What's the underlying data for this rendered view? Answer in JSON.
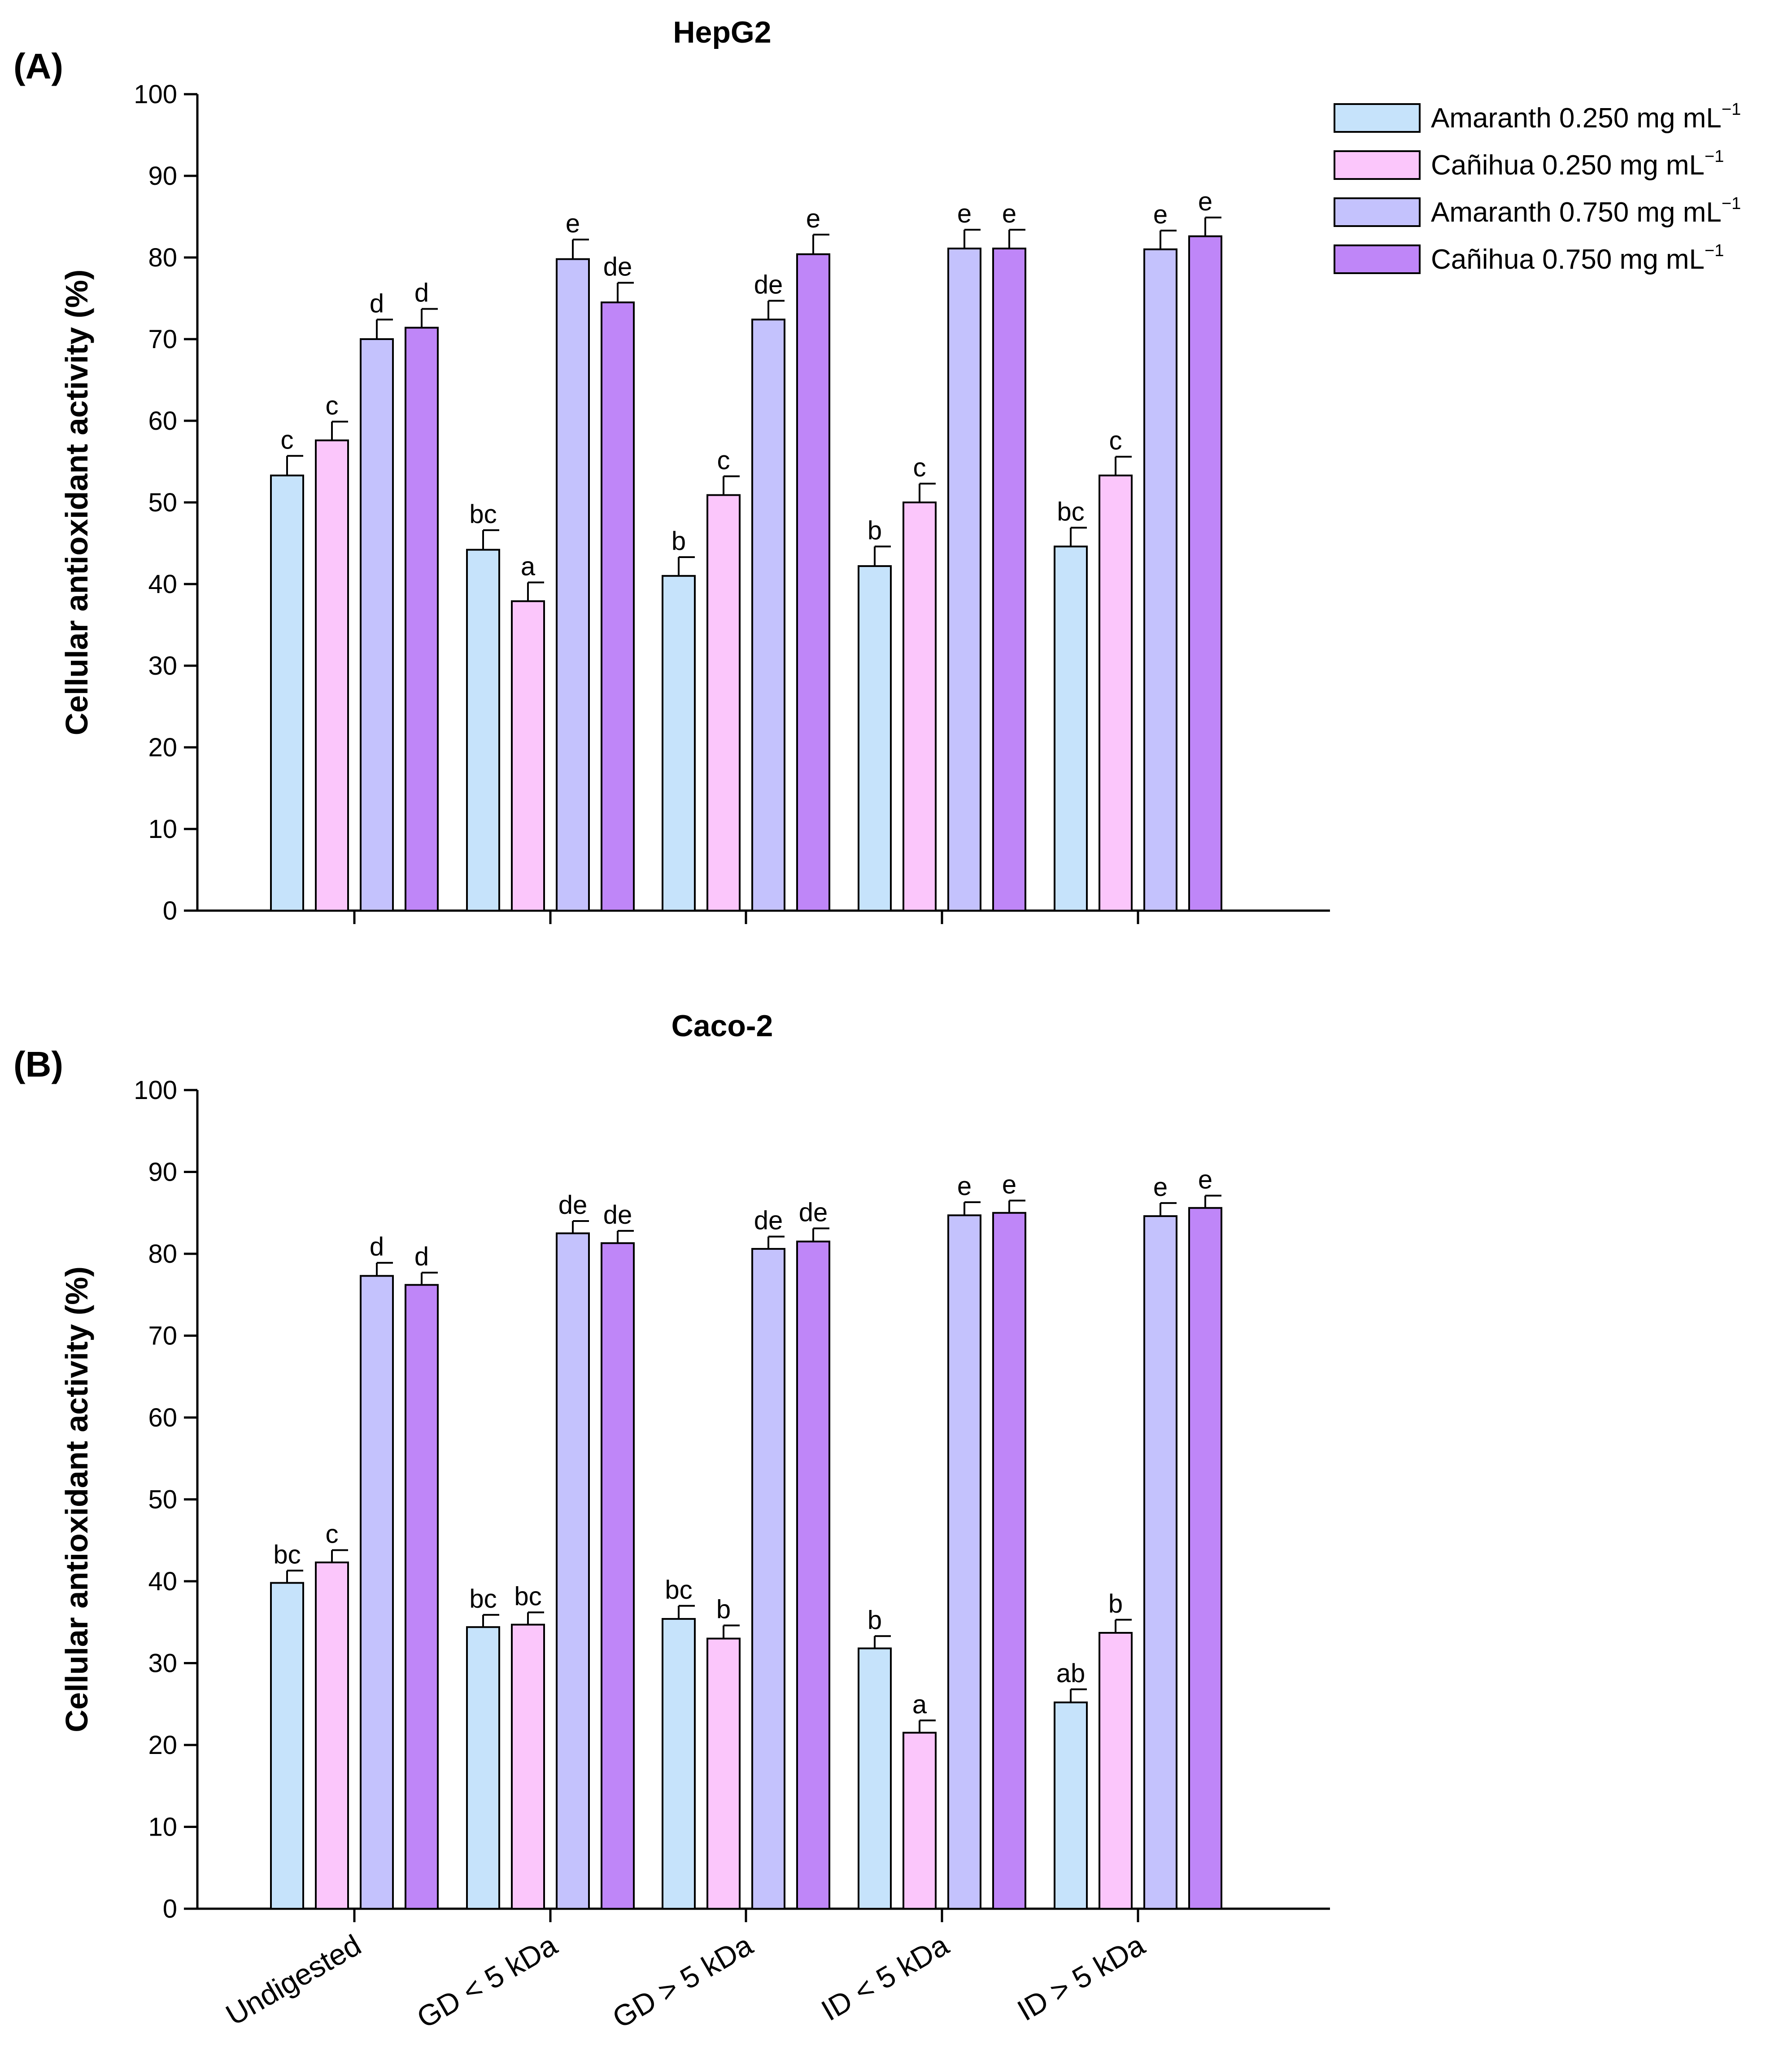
{
  "chart_data": [
    {
      "type": "bar",
      "panel_label": "(A)",
      "title": "HepG2",
      "xlabel": "",
      "ylabel": "Cellular antioxidant activity (%)",
      "ylim": [
        0,
        100
      ],
      "yticks": [
        "0",
        "10",
        "20",
        "30",
        "40",
        "50",
        "60",
        "70",
        "80",
        "90",
        "100"
      ],
      "categories": [
        "Undigested",
        "GD < 5 kDa",
        "GD > 5 kDa",
        "ID < 5 kDa",
        "ID > 5 kDa"
      ],
      "show_xtick_labels": false,
      "series": [
        {
          "name": "Amaranth 0.250 mg mL",
          "color": "#c6e3fb",
          "values": [
            53.3,
            44.2,
            41.0,
            42.2,
            44.6
          ],
          "errors": [
            2.4,
            2.4,
            2.3,
            2.4,
            2.3
          ],
          "letters": [
            "c",
            "bc",
            "b",
            "b",
            "bc"
          ]
        },
        {
          "name": "Cañihua 0.250 mg mL",
          "color": "#fbc6fb",
          "values": [
            57.6,
            37.9,
            50.9,
            50.0,
            53.3
          ],
          "errors": [
            2.3,
            2.3,
            2.3,
            2.3,
            2.3
          ],
          "letters": [
            "c",
            "a",
            "c",
            "c",
            "c"
          ]
        },
        {
          "name": "Amaranth 0.750 mg mL",
          "color": "#c4c2fd",
          "values": [
            70.0,
            79.8,
            72.4,
            81.1,
            81.0
          ],
          "errors": [
            2.4,
            2.4,
            2.3,
            2.3,
            2.3
          ],
          "letters": [
            "d",
            "e",
            "de",
            "e",
            "e"
          ]
        },
        {
          "name": "Cañihua 0.750 mg mL",
          "color": "#bf86f8",
          "values": [
            71.4,
            74.5,
            80.4,
            81.1,
            82.6
          ],
          "errors": [
            2.3,
            2.4,
            2.4,
            2.3,
            2.3
          ],
          "letters": [
            "d",
            "de",
            "e",
            "e",
            "e"
          ]
        }
      ],
      "legend": {
        "position": "top-right",
        "superscript": "−1",
        "entries": [
          "Amaranth 0.250 mg mL",
          "Cañihua 0.250 mg mL",
          "Amaranth 0.750 mg mL",
          "Cañihua 0.750 mg mL"
        ]
      }
    },
    {
      "type": "bar",
      "panel_label": "(B)",
      "title": "Caco-2",
      "xlabel": "",
      "ylabel": "Cellular antioxidant activity (%)",
      "ylim": [
        0,
        100
      ],
      "yticks": [
        "0",
        "10",
        "20",
        "30",
        "40",
        "50",
        "60",
        "70",
        "80",
        "90",
        "100"
      ],
      "categories": [
        "Undigested",
        "GD < 5 kDa",
        "GD > 5 kDa",
        "ID < 5 kDa",
        "ID > 5 kDa"
      ],
      "show_xtick_labels": true,
      "series": [
        {
          "name": "Amaranth 0.250 mg mL",
          "color": "#c6e3fb",
          "values": [
            39.8,
            34.4,
            35.4,
            31.8,
            25.2
          ],
          "errors": [
            1.5,
            1.5,
            1.6,
            1.5,
            1.6
          ],
          "letters": [
            "bc",
            "bc",
            "bc",
            "b",
            "ab"
          ]
        },
        {
          "name": "Cañihua 0.250 mg mL",
          "color": "#fbc6fb",
          "values": [
            42.3,
            34.7,
            33.0,
            21.5,
            33.7
          ],
          "errors": [
            1.5,
            1.5,
            1.6,
            1.5,
            1.6
          ],
          "letters": [
            "c",
            "bc",
            "b",
            "a",
            "b"
          ]
        },
        {
          "name": "Amaranth 0.750 mg mL",
          "color": "#c4c2fd",
          "values": [
            77.3,
            82.5,
            80.6,
            84.7,
            84.6
          ],
          "errors": [
            1.6,
            1.5,
            1.5,
            1.6,
            1.6
          ],
          "letters": [
            "d",
            "de",
            "de",
            "e",
            "e"
          ]
        },
        {
          "name": "Cañihua 0.750 mg mL",
          "color": "#bf86f8",
          "values": [
            76.2,
            81.3,
            81.5,
            85.0,
            85.6
          ],
          "errors": [
            1.5,
            1.5,
            1.6,
            1.5,
            1.5
          ],
          "letters": [
            "d",
            "de",
            "de",
            "e",
            "e"
          ]
        }
      ]
    }
  ]
}
